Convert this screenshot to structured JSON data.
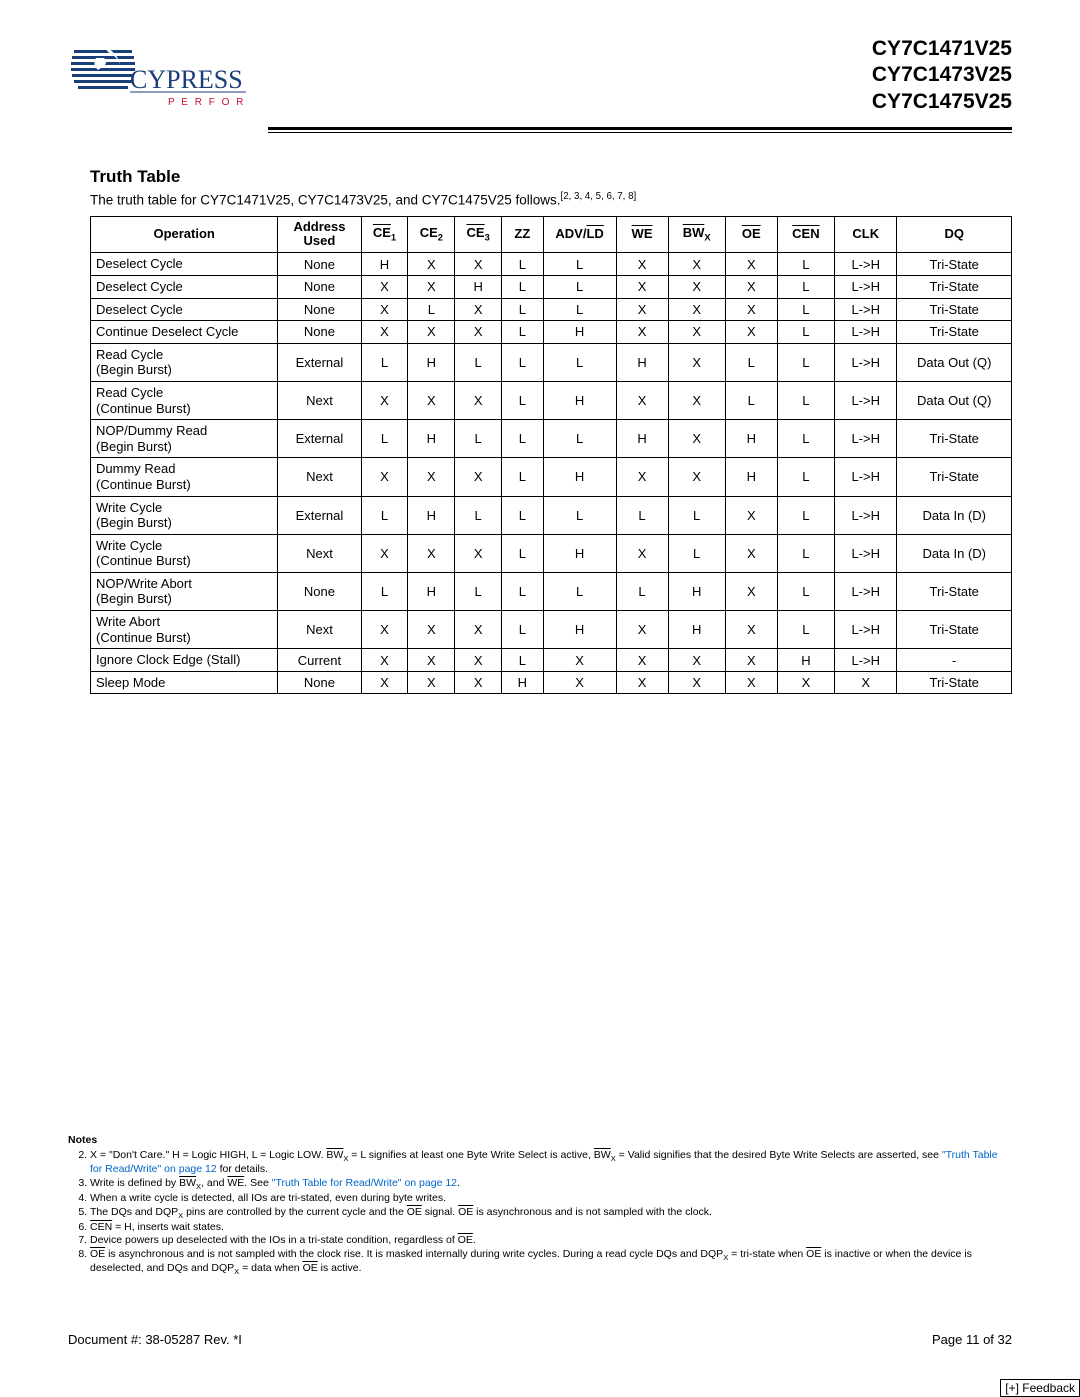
{
  "header": {
    "logo": {
      "name": "CYPRESS",
      "tagline": "P E R F O R M",
      "name_color": "#1a3e7a",
      "tagline_color": "#c8102e",
      "globe_color": "#1a3e7a"
    },
    "parts": [
      "CY7C1471V25",
      "CY7C1473V25",
      "CY7C1475V25"
    ]
  },
  "section_title": "Truth Table",
  "intro": {
    "text": "The truth table for CY7C1471V25, CY7C1473V25, and CY7C1475V25 follows.",
    "refs": "[2, 3, 4, 5, 6, 7, 8]"
  },
  "table": {
    "columns": [
      {
        "label": "Operation",
        "overline": false,
        "sub": "",
        "width": "18%"
      },
      {
        "label": "Address Used",
        "overline": false,
        "sub": "",
        "width": "8%"
      },
      {
        "label": "CE",
        "overline": true,
        "sub": "1",
        "width": "4.5%"
      },
      {
        "label": "CE",
        "overline": false,
        "sub": "2",
        "width": "4.5%"
      },
      {
        "label": "CE",
        "overline": true,
        "sub": "3",
        "width": "4.5%"
      },
      {
        "label": "ZZ",
        "overline": false,
        "sub": "",
        "width": "4%"
      },
      {
        "label": "ADV/",
        "overline": false,
        "sub": "",
        "width": "7%",
        "second": "LD",
        "second_overline": true
      },
      {
        "label": "WE",
        "overline": true,
        "sub": "",
        "width": "5%"
      },
      {
        "label": "BW",
        "overline": true,
        "sub": "X",
        "width": "5.5%"
      },
      {
        "label": "OE",
        "overline": true,
        "sub": "",
        "width": "5%"
      },
      {
        "label": "CEN",
        "overline": true,
        "sub": "",
        "width": "5.5%"
      },
      {
        "label": "CLK",
        "overline": false,
        "sub": "",
        "width": "6%"
      },
      {
        "label": "DQ",
        "overline": false,
        "sub": "",
        "width": "11%"
      }
    ],
    "rows": [
      {
        "op": "Deselect Cycle",
        "cells": [
          "None",
          "H",
          "X",
          "X",
          "L",
          "L",
          "X",
          "X",
          "X",
          "L",
          "L->H",
          "Tri-State"
        ]
      },
      {
        "op": "Deselect Cycle",
        "cells": [
          "None",
          "X",
          "X",
          "H",
          "L",
          "L",
          "X",
          "X",
          "X",
          "L",
          "L->H",
          "Tri-State"
        ]
      },
      {
        "op": "Deselect Cycle",
        "cells": [
          "None",
          "X",
          "L",
          "X",
          "L",
          "L",
          "X",
          "X",
          "X",
          "L",
          "L->H",
          "Tri-State"
        ]
      },
      {
        "op": "Continue Deselect Cycle",
        "cells": [
          "None",
          "X",
          "X",
          "X",
          "L",
          "H",
          "X",
          "X",
          "X",
          "L",
          "L->H",
          "Tri-State"
        ]
      },
      {
        "op": "Read Cycle\n(Begin Burst)",
        "cells": [
          "External",
          "L",
          "H",
          "L",
          "L",
          "L",
          "H",
          "X",
          "L",
          "L",
          "L->H",
          "Data Out (Q)"
        ]
      },
      {
        "op": "Read Cycle\n(Continue Burst)",
        "cells": [
          "Next",
          "X",
          "X",
          "X",
          "L",
          "H",
          "X",
          "X",
          "L",
          "L",
          "L->H",
          "Data Out (Q)"
        ]
      },
      {
        "op": "NOP/Dummy Read\n(Begin Burst)",
        "cells": [
          "External",
          "L",
          "H",
          "L",
          "L",
          "L",
          "H",
          "X",
          "H",
          "L",
          "L->H",
          "Tri-State"
        ]
      },
      {
        "op": "Dummy Read\n(Continue Burst)",
        "cells": [
          "Next",
          "X",
          "X",
          "X",
          "L",
          "H",
          "X",
          "X",
          "H",
          "L",
          "L->H",
          "Tri-State"
        ]
      },
      {
        "op": "Write Cycle\n(Begin Burst)",
        "cells": [
          "External",
          "L",
          "H",
          "L",
          "L",
          "L",
          "L",
          "L",
          "X",
          "L",
          "L->H",
          "Data In (D)"
        ]
      },
      {
        "op": "Write Cycle\n(Continue Burst)",
        "cells": [
          "Next",
          "X",
          "X",
          "X",
          "L",
          "H",
          "X",
          "L",
          "X",
          "L",
          "L->H",
          "Data In (D)"
        ]
      },
      {
        "op": "NOP/Write Abort\n(Begin Burst)",
        "cells": [
          "None",
          "L",
          "H",
          "L",
          "L",
          "L",
          "L",
          "H",
          "X",
          "L",
          "L->H",
          "Tri-State"
        ]
      },
      {
        "op": "Write Abort\n(Continue Burst)",
        "cells": [
          "Next",
          "X",
          "X",
          "X",
          "L",
          "H",
          "X",
          "H",
          "X",
          "L",
          "L->H",
          "Tri-State"
        ]
      },
      {
        "op": "Ignore Clock Edge (Stall)",
        "cells": [
          "Current",
          "X",
          "X",
          "X",
          "L",
          "X",
          "X",
          "X",
          "X",
          "H",
          "L->H",
          "-"
        ]
      },
      {
        "op": "Sleep Mode",
        "cells": [
          "None",
          "X",
          "X",
          "X",
          "H",
          "X",
          "X",
          "X",
          "X",
          "X",
          "X",
          "Tri-State"
        ]
      }
    ]
  },
  "notes": {
    "heading": "Notes",
    "start": 2,
    "items": [
      {
        "pre": "X = \"Don't Care.\" H = Logic HIGH, L = Logic LOW. ",
        "sig1": "BW",
        "sig1_sub": "X",
        "mid1": " = L signifies at least one Byte Write Select is active, ",
        "sig2": "BW",
        "sig2_sub": "X",
        "mid2": " = Valid signifies that the desired Byte Write Selects are asserted, see ",
        "link": "\"Truth Table for Read/Write\" on page 12",
        "post": " for details."
      },
      {
        "pre": "Write is defined by ",
        "sig1": "BW",
        "sig1_sub": "X",
        "mid1": ", and ",
        "sig2": "WE",
        "sig2_sub": "",
        "mid2": ". See ",
        "link": "\"Truth Table for Read/Write\" on page 12",
        "post": "."
      },
      {
        "plain": "When a write cycle is detected, all IOs are tri-stated, even during byte writes."
      },
      {
        "pre": "The DQs and DQP",
        "sub1": "X",
        "mid1": " pins are controlled by the current cycle and the ",
        "sig1": "OE",
        "mid2": " signal. ",
        "sig2": "OE",
        "post": " is asynchronous and is not sampled with the clock."
      },
      {
        "pre": "",
        "sig1": "CEN",
        "post": " = H, inserts wait states."
      },
      {
        "pre": "Device powers up deselected with the IOs in a tri-state condition, regardless of ",
        "sig1": "OE",
        "post": "."
      },
      {
        "pre": "",
        "sig1": "OE",
        "mid1": " is asynchronous and is not sampled with the clock rise. It is masked internally during write cycles. During a read cycle DQs and DQP",
        "sub1": "X",
        "mid2": " = tri-state when ",
        "sig2": "OE",
        "mid3": " is inactive or when the device is deselected, and DQs and DQP",
        "sub2": "X",
        "mid4": " = data when ",
        "sig3": "OE",
        "post": " is active."
      }
    ]
  },
  "footer": {
    "doc": "Document #: 38-05287 Rev. *I",
    "page": "Page 11 of 32"
  },
  "feedback": "[+] Feedback"
}
